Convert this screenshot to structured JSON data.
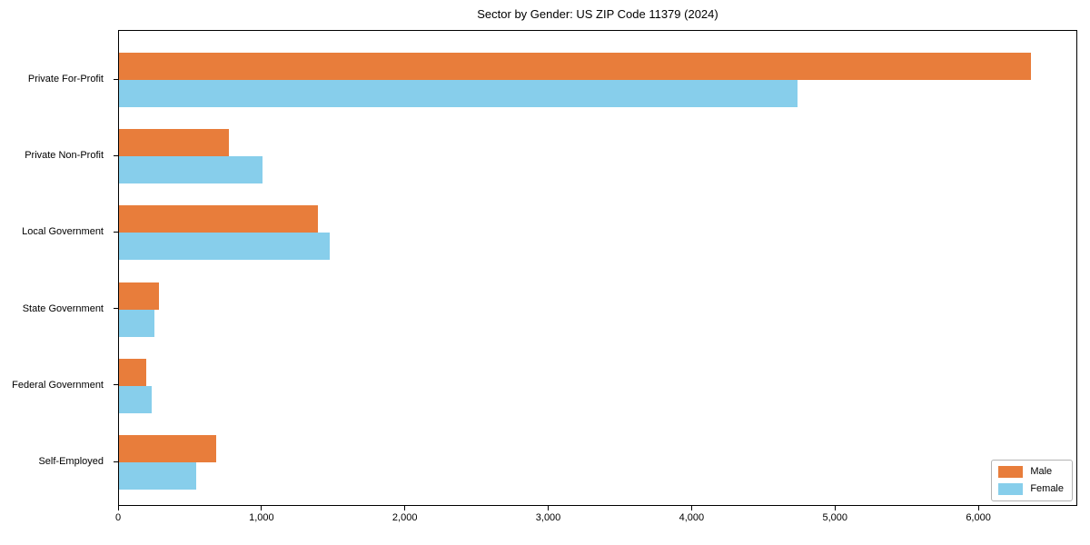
{
  "title": "Sector by Gender: US ZIP Code 11379 (2024)",
  "colors": {
    "male": "#e87d3b",
    "female": "#87ceeb",
    "axis": "#000000",
    "background": "#ffffff",
    "legend_border": "#b3b3b3"
  },
  "chart_data": {
    "type": "bar",
    "orientation": "horizontal",
    "title": "Sector by Gender: US ZIP Code 11379 (2024)",
    "categories": [
      "Private For-Profit",
      "Private Non-Profit",
      "Local Government",
      "State Government",
      "Federal Government",
      "Self-Employed"
    ],
    "series": [
      {
        "name": "Male",
        "color": "#e87d3b",
        "values": [
          6370,
          770,
          1390,
          280,
          190,
          680
        ]
      },
      {
        "name": "Female",
        "color": "#87ceeb",
        "values": [
          4740,
          1000,
          1475,
          245,
          230,
          540
        ]
      }
    ],
    "xlabel": "",
    "ylabel": "",
    "xlim": [
      0,
      6690
    ],
    "xticks": [
      0,
      1000,
      2000,
      3000,
      4000,
      5000,
      6000
    ],
    "xtick_labels": [
      "0",
      "1,000",
      "2,000",
      "3,000",
      "4,000",
      "5,000",
      "6,000"
    ],
    "grid": false,
    "legend": {
      "position": "lower right",
      "entries": [
        "Male",
        "Female"
      ]
    }
  }
}
